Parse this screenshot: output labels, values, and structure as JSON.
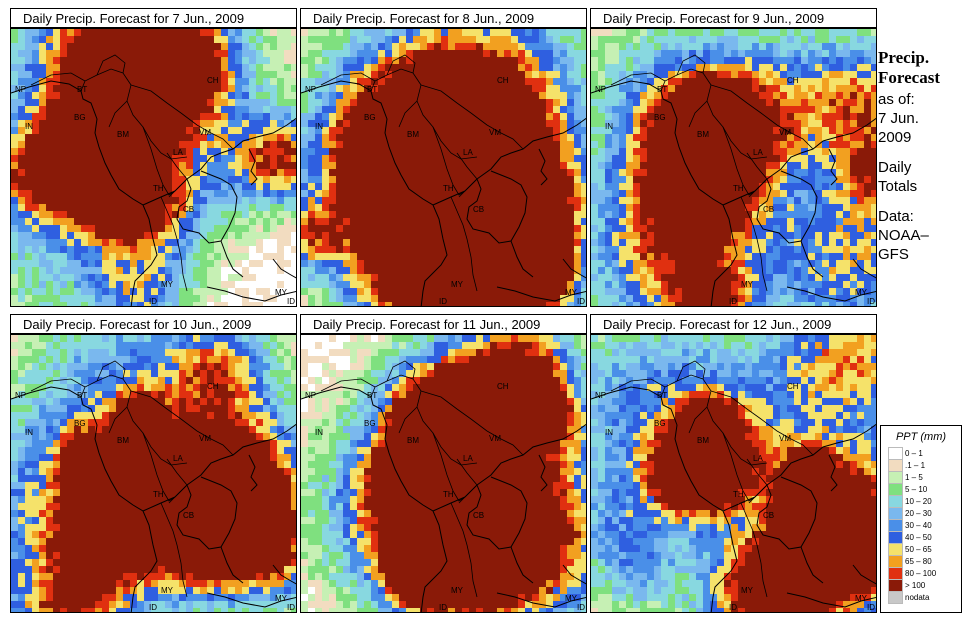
{
  "panels": [
    {
      "title": "Daily Precip. Forecast for  7 Jun., 2009",
      "seed": 7
    },
    {
      "title": "Daily Precip. Forecast for  8 Jun., 2009",
      "seed": 8
    },
    {
      "title": "Daily Precip. Forecast for  9 Jun., 2009",
      "seed": 9
    },
    {
      "title": "Daily Precip. Forecast for  10 Jun., 2009",
      "seed": 10
    },
    {
      "title": "Daily Precip. Forecast for  11 Jun., 2009",
      "seed": 11
    },
    {
      "title": "Daily Precip. Forecast for  12 Jun., 2009",
      "seed": 12
    }
  ],
  "map_labels": [
    "NP",
    "BT",
    "IN",
    "BG",
    "BM",
    "CH",
    "VM",
    "LA",
    "TH",
    "CB",
    "MY",
    "MY",
    "ID",
    "ID"
  ],
  "side": {
    "title_line1": "Precip.",
    "title_line2": "Forecast",
    "asof_line1": "as of:",
    "asof_line2": "7 Jun.",
    "asof_line3": "2009",
    "daily_line1": "Daily",
    "daily_line2": "Totals",
    "data_line1": "Data:",
    "data_line2": "NOAA–",
    "data_line3": "GFS"
  },
  "legend": {
    "title": "PPT (mm)",
    "items": [
      {
        "label": "0 – 1",
        "color": "#ffffff"
      },
      {
        "label": ".1 – 1",
        "color": "#f2dcc0"
      },
      {
        "label": "1 – 5",
        "color": "#c6f0b4"
      },
      {
        "label": "5 – 10",
        "color": "#7fe07f"
      },
      {
        "label": "10 – 20",
        "color": "#88d8e0"
      },
      {
        "label": "20 – 30",
        "color": "#7ab8ee"
      },
      {
        "label": "30 – 40",
        "color": "#4a8fe8"
      },
      {
        "label": "40 – 50",
        "color": "#2f5fe0"
      },
      {
        "label": "50 – 65",
        "color": "#f5e26a"
      },
      {
        "label": "65 – 80",
        "color": "#f2a020"
      },
      {
        "label": "80 – 100",
        "color": "#e03010"
      },
      {
        "label": "> 100",
        "color": "#8a1a08"
      },
      {
        "label": "nodata",
        "color": "#c8c8c8"
      }
    ]
  }
}
